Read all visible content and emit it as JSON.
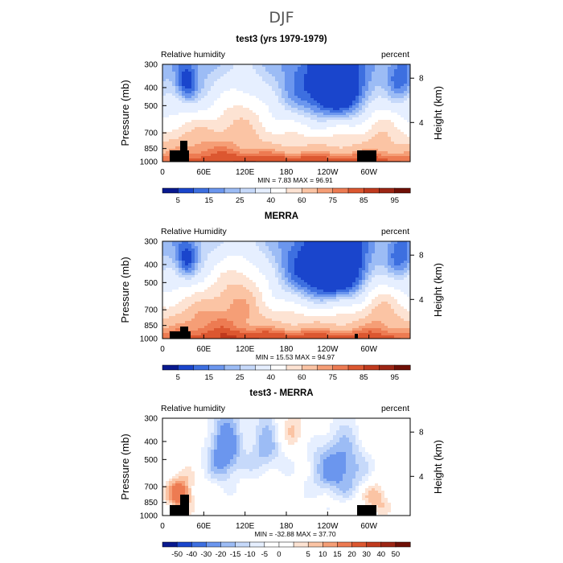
{
  "page": {
    "title": "DJF"
  },
  "colors": {
    "rh_scale": [
      "#08198f",
      "#1a45cc",
      "#3d6fe0",
      "#6b96ee",
      "#9cbcf5",
      "#c6d9fa",
      "#e6efff",
      "#ffffff",
      "#fde3d3",
      "#fbc4a4",
      "#f59e76",
      "#ed7b52",
      "#dc5730",
      "#c03a1e",
      "#9c2514",
      "#6f0f06"
    ],
    "diff_scale": [
      "#08198f",
      "#1a45cc",
      "#3d6fe0",
      "#6b96ee",
      "#9cbcf5",
      "#c6d9fa",
      "#e6efff",
      "#ffffff",
      "#ffffff",
      "#fde3d3",
      "#fbc4a4",
      "#f59e76",
      "#ed7b52",
      "#dc5730",
      "#c03a1e",
      "#9c2514",
      "#6f0f06"
    ],
    "terrain": "#000000"
  },
  "chart_data": [
    {
      "type": "heatmap",
      "panel_id": "test3",
      "title": "test3 (yrs 1979-1979)",
      "left_label": "Relative humidity",
      "right_label": "percent",
      "ylabel": "Pressure (mb)",
      "y2label": "Height (km)",
      "yticks": [
        "300",
        "400",
        "500",
        "700",
        "850",
        "1000"
      ],
      "y2ticks": [
        "8",
        "4"
      ],
      "xticks": [
        "0",
        "60E",
        "120E",
        "180",
        "120W",
        "60W"
      ],
      "stats": "MIN =    7.83   MAX =   96.91",
      "colorbar_labels": [
        "5",
        "15",
        "25",
        "40",
        "60",
        "75",
        "85",
        "95"
      ],
      "min": 7.83,
      "max": 96.91
    },
    {
      "type": "heatmap",
      "panel_id": "merra",
      "title": "MERRA",
      "left_label": "Relative Humidity",
      "right_label": "percent",
      "ylabel": "Pressure (mb)",
      "y2label": "Height (km)",
      "yticks": [
        "300",
        "400",
        "500",
        "700",
        "850",
        "1000"
      ],
      "y2ticks": [
        "8",
        "4"
      ],
      "xticks": [
        "0",
        "60E",
        "120E",
        "180",
        "120W",
        "60W"
      ],
      "stats": "MIN =   15.53   MAX =   94.97",
      "colorbar_labels": [
        "5",
        "15",
        "25",
        "40",
        "60",
        "75",
        "85",
        "95"
      ],
      "min": 15.53,
      "max": 94.97
    },
    {
      "type": "heatmap",
      "panel_id": "diff",
      "title": "test3 - MERRA",
      "left_label": "Relative humidity",
      "right_label": "percent",
      "ylabel": "Pressure (mb)",
      "y2label": "Height (km)",
      "yticks": [
        "300",
        "400",
        "500",
        "700",
        "850",
        "1000"
      ],
      "y2ticks": [
        "8",
        "4"
      ],
      "xticks": [
        "0",
        "60E",
        "120E",
        "180",
        "120W",
        "60W"
      ],
      "stats": "MIN =  -32.88   MAX =   37.70",
      "colorbar_labels": [
        "-50",
        "-40",
        "-30",
        "-20",
        "-15",
        "-10",
        "-5",
        "0",
        "5",
        "10",
        "15",
        "20",
        "30",
        "40",
        "50"
      ],
      "min": -32.88,
      "max": 37.7
    }
  ]
}
